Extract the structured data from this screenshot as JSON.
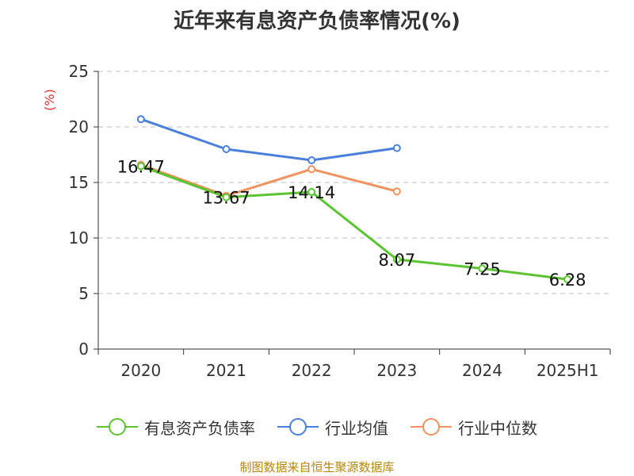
{
  "chart_data": {
    "type": "line",
    "title": "近年来有息资产负债率情况(%)",
    "ylabel": "(%)",
    "xlabel": "",
    "categories": [
      "2020",
      "2021",
      "2022",
      "2023",
      "2024",
      "2025H1"
    ],
    "ylim": [
      0,
      25
    ],
    "yticks": [
      0,
      5,
      10,
      15,
      20,
      25
    ],
    "grid": true,
    "legend_position": "bottom",
    "series": [
      {
        "name": "有息资产负债率",
        "color": "#5ac530",
        "values": [
          16.47,
          13.67,
          14.14,
          8.07,
          7.25,
          6.28
        ],
        "labels": [
          "16.47",
          "13.67",
          "14.14",
          "8.07",
          "7.25",
          "6.28"
        ]
      },
      {
        "name": "行业均值",
        "color": "#4a7fdc",
        "values": [
          20.7,
          18.0,
          17.0,
          18.1,
          null,
          null
        ]
      },
      {
        "name": "行业中位数",
        "color": "#f2925e",
        "values": [
          16.6,
          13.8,
          16.2,
          14.2,
          null,
          null
        ]
      }
    ]
  },
  "source": "制图数据来自恒生聚源数据库"
}
